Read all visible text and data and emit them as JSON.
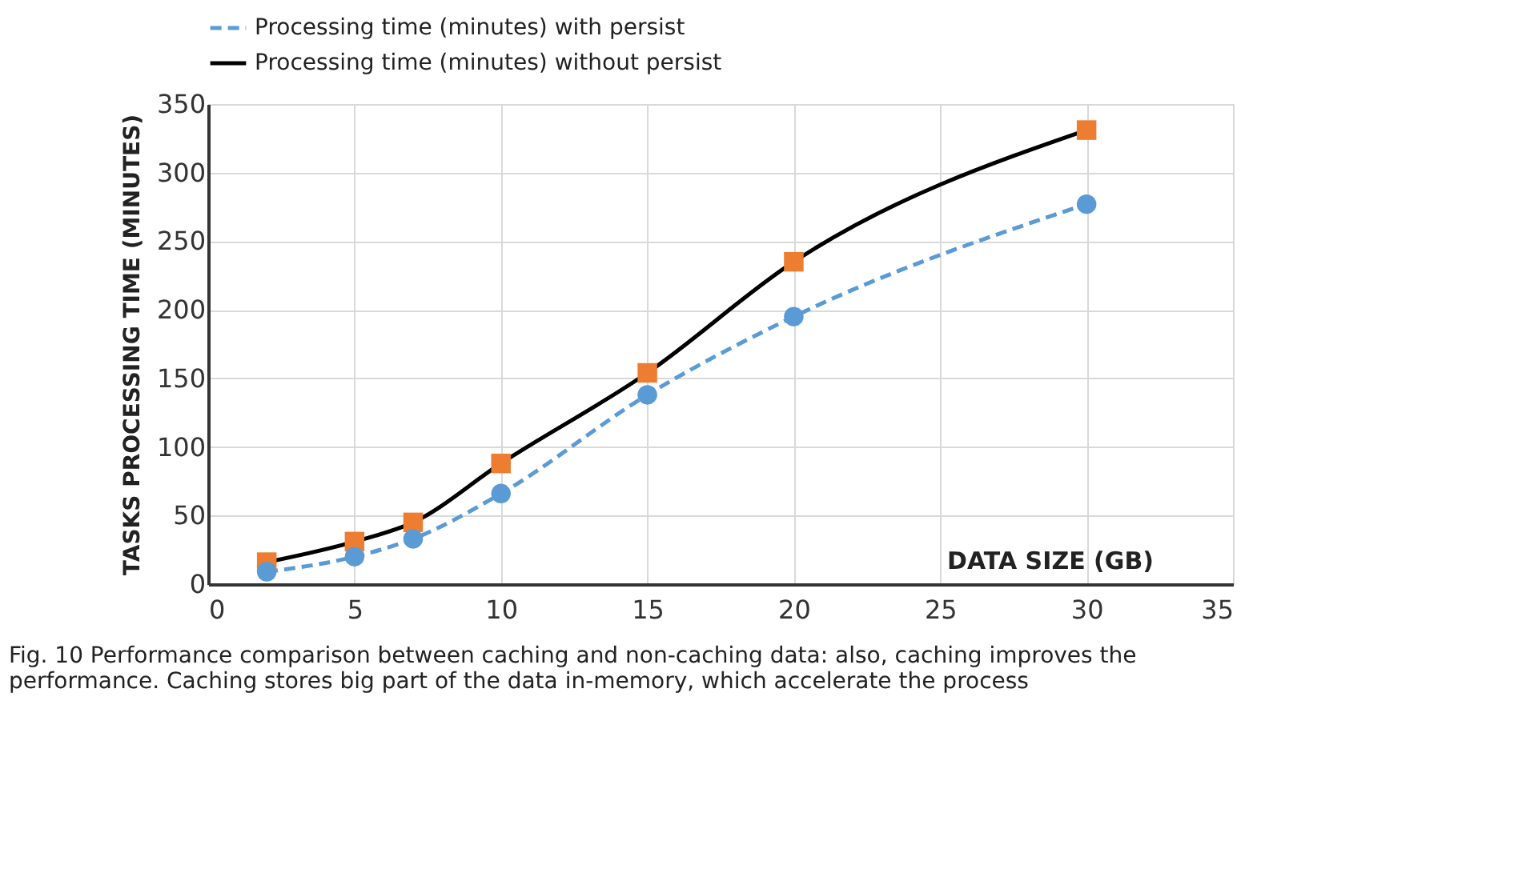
{
  "chart_data": {
    "type": "line",
    "xlabel": "DATA SIZE (GB)",
    "ylabel": "TASKS PROCESSING TIME (MINUTES)",
    "x": [
      2,
      5,
      7,
      10,
      15,
      20,
      30
    ],
    "series": [
      {
        "name": "Processing time (minutes) with persist",
        "color": "#5b9bd5",
        "values": [
          9,
          20,
          33,
          66,
          138,
          195,
          277
        ],
        "marker": "circle",
        "line_style": "dashed"
      },
      {
        "name": "Processing time (minutes) without persist",
        "color": "#000000",
        "colors": [
          "#ed7d31",
          "#ed7d31",
          "#ed7d31",
          "#ed7d31",
          "#ed7d31",
          "#ed7d31",
          "#ed7d31"
        ],
        "values": [
          16,
          31,
          45,
          88,
          154,
          235,
          331
        ],
        "marker": "square",
        "line_style": "solid"
      }
    ],
    "xlim": [
      0,
      35
    ],
    "xticks": [
      0,
      5,
      10,
      15,
      20,
      25,
      30,
      35
    ],
    "ylim": [
      0,
      350
    ],
    "yticks": [
      0,
      50,
      100,
      150,
      200,
      250,
      300,
      350
    ],
    "grid": true,
    "legend": "top",
    "annotations": [
      "Fig. 10 Performance comparison between caching and non-caching data: also, caching improves the performance. Caching stores big part of the data in-memory, which accelerate the process"
    ]
  }
}
